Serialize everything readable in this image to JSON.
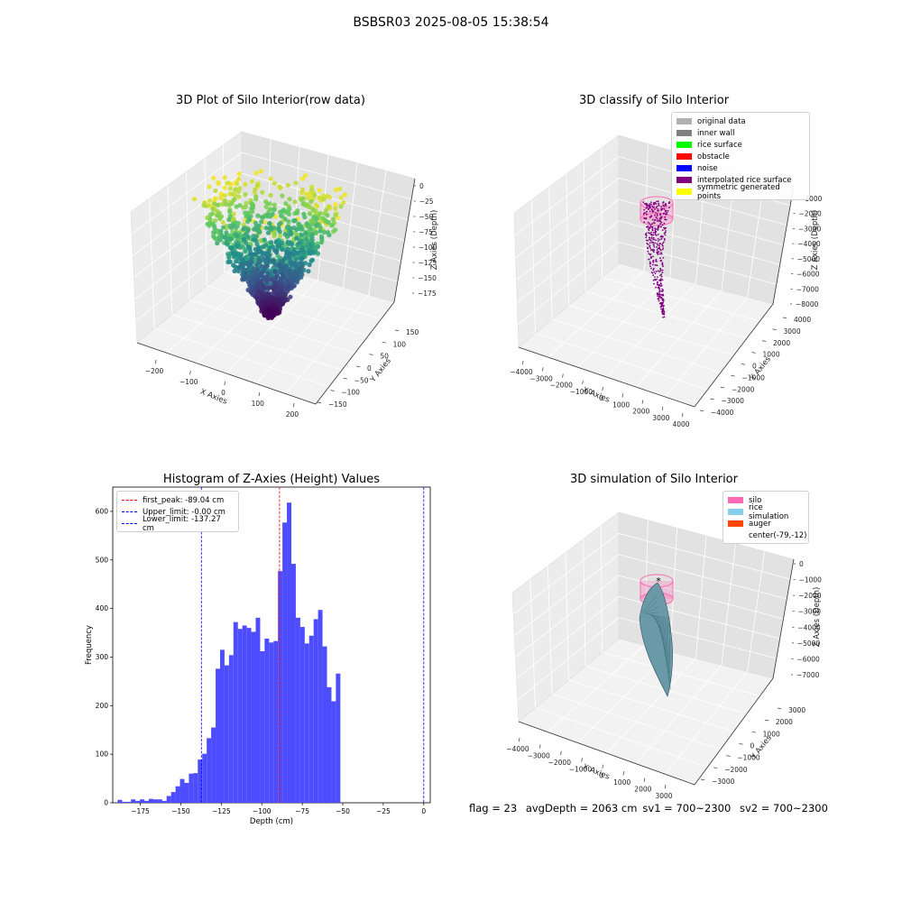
{
  "figure_title": "BSBSR03 2025-08-05 15:38:54",
  "status": {
    "flag": "flag = 23",
    "avg_depth": "avgDepth = 2063 cm",
    "sv1": "sv1 = 700~2300",
    "sv2": "sv2 = 700~2300"
  },
  "colors": {
    "scatter_cmap": [
      "#440154",
      "#3b528b",
      "#21918c",
      "#5ec962",
      "#fde725"
    ],
    "silo": "#ff69b4",
    "rice_simulation": "#87ceeb",
    "auger": "#ff4500",
    "histogram_bar": "#4d4dff",
    "first_peak_line": "#ff0000",
    "limit_lines": "#0000ff"
  },
  "chart_data": [
    {
      "type": "scatter3d",
      "title": "3D Plot of Silo Interior(row data)",
      "xlabel": "X Axies",
      "ylabel": "Y Axies",
      "zlabel": "Z Axies (Depth)",
      "xticks": [
        "−200",
        "−100",
        "0",
        "100",
        "200"
      ],
      "yticks": [
        "−150",
        "−100",
        "−50",
        "0",
        "50",
        "100",
        "150"
      ],
      "zticks": [
        "0",
        "−25",
        "−50",
        "−75",
        "−100",
        "−125",
        "−150",
        "−175"
      ],
      "xlim": [
        -250,
        250
      ],
      "ylim": [
        -170,
        170
      ],
      "zlim": [
        -190,
        5
      ],
      "colormap": "viridis",
      "shape": "funnel: rim near z=-10 at radius ~200, narrowing to z~-185 near center"
    },
    {
      "type": "scatter3d",
      "title": "3D classify of Silo Interior",
      "xlabel": "X Axies",
      "ylabel": "Y Axies",
      "zlabel": "Z Axies (Depth)",
      "xticks": [
        "−4000",
        "−3000",
        "−2000",
        "−1000",
        "0",
        "1000",
        "2000",
        "3000",
        "4000"
      ],
      "yticks": [
        "−4000",
        "−3000",
        "−2000",
        "−1000",
        "0",
        "1000",
        "2000",
        "3000",
        "4000"
      ],
      "zticks": [
        "−1000",
        "−2000",
        "−3000",
        "−4000",
        "−5000",
        "−6000",
        "−7000",
        "−8000"
      ],
      "legend": [
        {
          "label": "original data",
          "color": "#b0b0b0"
        },
        {
          "label": "inner wall",
          "color": "#808080"
        },
        {
          "label": "rice surface",
          "color": "#00ff00"
        },
        {
          "label": "obstacle",
          "color": "#ff0000"
        },
        {
          "label": "noise",
          "color": "#0000ff"
        },
        {
          "label": "interpolated rice surface",
          "color": "#800080"
        },
        {
          "label": "symmetric generated points",
          "color": "#ffff00"
        }
      ],
      "legend_placement": "top-right"
    },
    {
      "type": "bar",
      "title": "Histogram of Z-Axies (Height) Values",
      "xlabel": "Depth (cm)",
      "ylabel": "Frequency",
      "xlim": [
        -192,
        4
      ],
      "ylim": [
        0,
        650
      ],
      "xticks": [
        -175,
        -150,
        -125,
        -100,
        -75,
        -50,
        -25,
        0
      ],
      "xtick_labels": [
        "−175",
        "−150",
        "−125",
        "−100",
        "−75",
        "−50",
        "−25",
        "0"
      ],
      "yticks": [
        0,
        100,
        200,
        300,
        400,
        500,
        600
      ],
      "bin_start": -189,
      "bin_width": 2.75,
      "values": [
        6,
        2,
        2,
        7,
        4,
        7,
        4,
        8,
        7,
        7,
        4,
        14,
        22,
        34,
        49,
        41,
        60,
        61,
        89,
        101,
        133,
        155,
        276,
        315,
        283,
        304,
        372,
        358,
        365,
        360,
        352,
        381,
        312,
        338,
        330,
        333,
        477,
        577,
        618,
        492,
        381,
        362,
        328,
        344,
        378,
        397,
        322,
        238,
        209,
        266
      ],
      "vlines": [
        {
          "x": -89.04,
          "label": "first_peak: -89.04 cm",
          "color": "#ff0000"
        },
        {
          "x": 0.0,
          "label": "Upper_limit: -0.00 cm",
          "color": "#0000ff"
        },
        {
          "x": -137.27,
          "label": "Lower_limit: -137.27 cm",
          "color": "#0000ff"
        }
      ],
      "legend_placement": "top-left"
    },
    {
      "type": "surface3d",
      "title": "3D simulation of Silo Interior",
      "xlabel": "X Axies",
      "ylabel": "Y Axies",
      "zlabel": "Z Axies (Depth)",
      "xticks": [
        "−4000",
        "−3000",
        "−2000",
        "−1000",
        "0",
        "1000",
        "2000",
        "3000"
      ],
      "yticks": [
        "−3000",
        "−2000",
        "−1000",
        "0",
        "1000",
        "2000",
        "3000"
      ],
      "zticks": [
        "0",
        "−1000",
        "−2000",
        "−3000",
        "−4000",
        "−5000",
        "−6000",
        "−7000"
      ],
      "legend": [
        {
          "label": "silo",
          "color": "#ff69b4"
        },
        {
          "label": "rice simulation",
          "color": "#87ceeb"
        },
        {
          "label": "auger",
          "color": "#ff4500"
        },
        {
          "label": "center(-79,-12)",
          "color": ""
        }
      ],
      "legend_placement": "top-right"
    }
  ]
}
